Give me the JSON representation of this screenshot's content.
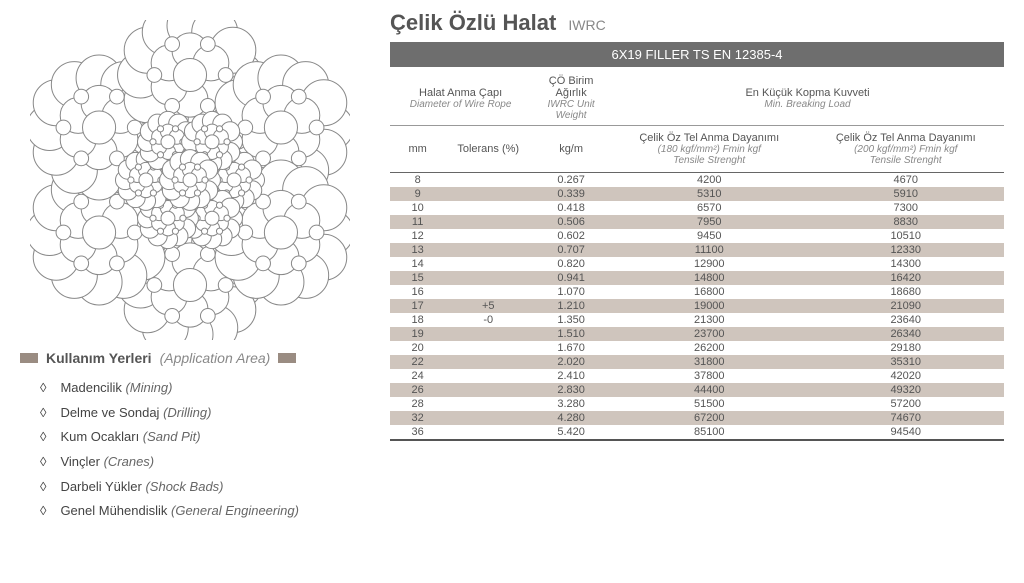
{
  "title_main": "Çelik Özlü Halat",
  "title_sub": "IWRC",
  "banner": "6X19 FILLER TS  EN 12385-4",
  "header": {
    "diameter_tr": "Halat Anma Çapı",
    "diameter_en": "Diameter of Wire Rope",
    "weight_tr": "ÇÖ Birim Ağırlık",
    "weight_en": "IWRC Unit Weight",
    "break_tr": "En Küçük Kopma Kuvveti",
    "break_en": "Min. Breaking Load",
    "mm": "mm",
    "tol": "Tolerans (%)",
    "kgm": "kg/m",
    "f180_1": "Çelik Öz Tel Anma Dayanımı",
    "f180_2": "(180 kgf/mm²) Fmin kgf",
    "f180_3": "Tensile Strenght",
    "f200_1": "Çelik Öz Tel Anma Dayanımı",
    "f200_2": "(200 kgf/mm²) Fmin kgf",
    "f200_3": "Tensile Strenght"
  },
  "tolerance_plus": "+5",
  "tolerance_minus": "-0",
  "rows": [
    {
      "mm": "8",
      "kg": "0.267",
      "f180": "4200",
      "f200": "4670",
      "alt": false
    },
    {
      "mm": "9",
      "kg": "0.339",
      "f180": "5310",
      "f200": "5910",
      "alt": true
    },
    {
      "mm": "10",
      "kg": "0.418",
      "f180": "6570",
      "f200": "7300",
      "alt": false
    },
    {
      "mm": "11",
      "kg": "0.506",
      "f180": "7950",
      "f200": "8830",
      "alt": true
    },
    {
      "mm": "12",
      "kg": "0.602",
      "f180": "9450",
      "f200": "10510",
      "alt": false
    },
    {
      "mm": "13",
      "kg": "0.707",
      "f180": "11100",
      "f200": "12330",
      "alt": true
    },
    {
      "mm": "14",
      "kg": "0.820",
      "f180": "12900",
      "f200": "14300",
      "alt": false
    },
    {
      "mm": "15",
      "kg": "0.941",
      "f180": "14800",
      "f200": "16420",
      "alt": true
    },
    {
      "mm": "16",
      "kg": "1.070",
      "f180": "16800",
      "f200": "18680",
      "alt": false
    },
    {
      "mm": "17",
      "kg": "1.210",
      "f180": "19000",
      "f200": "21090",
      "alt": true,
      "tol": "+5"
    },
    {
      "mm": "18",
      "kg": "1.350",
      "f180": "21300",
      "f200": "23640",
      "alt": false,
      "tol": "-0"
    },
    {
      "mm": "19",
      "kg": "1.510",
      "f180": "23700",
      "f200": "26340",
      "alt": true
    },
    {
      "mm": "20",
      "kg": "1.670",
      "f180": "26200",
      "f200": "29180",
      "alt": false
    },
    {
      "mm": "22",
      "kg": "2.020",
      "f180": "31800",
      "f200": "35310",
      "alt": true
    },
    {
      "mm": "24",
      "kg": "2.410",
      "f180": "37800",
      "f200": "42020",
      "alt": false
    },
    {
      "mm": "26",
      "kg": "2.830",
      "f180": "44400",
      "f200": "49320",
      "alt": true
    },
    {
      "mm": "28",
      "kg": "3.280",
      "f180": "51500",
      "f200": "57200",
      "alt": false
    },
    {
      "mm": "32",
      "kg": "4.280",
      "f180": "67200",
      "f200": "74670",
      "alt": true
    },
    {
      "mm": "36",
      "kg": "5.420",
      "f180": "85100",
      "f200": "94540",
      "alt": false
    }
  ],
  "app_title_tr": "Kullanım Yerleri",
  "app_title_en": "(Application Area)",
  "applications": [
    {
      "tr": "Madencilik",
      "en": "(Mining)"
    },
    {
      "tr": "Delme ve Sondaj",
      "en": "(Drilling)"
    },
    {
      "tr": "Kum Ocakları",
      "en": "(Sand Pit)"
    },
    {
      "tr": "Vinçler",
      "en": "(Cranes)"
    },
    {
      "tr": "Darbeli Yükler",
      "en": "(Shock Bads)"
    },
    {
      "tr": "Genel Mühendislik",
      "en": "(General Engineering)"
    }
  ],
  "diagram": {
    "stroke": "#888",
    "fill": "#fff",
    "bg": "#fff",
    "strand_centers_angle_deg": [
      90,
      150,
      210,
      270,
      330,
      30
    ],
    "strand_radius": 105,
    "outer_wire_r": 23,
    "core_scale": 0.42
  }
}
